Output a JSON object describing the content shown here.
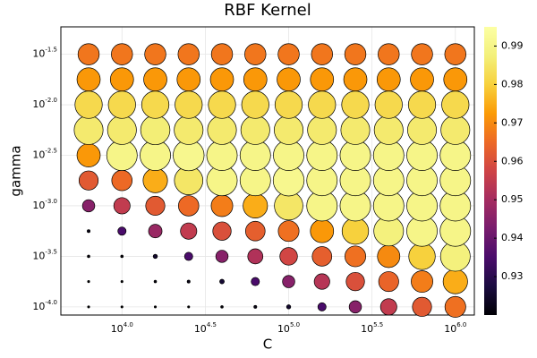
{
  "chart_data": {
    "type": "scatter",
    "title": "RBF Kernel",
    "xlabel": "C",
    "ylabel": "gamma",
    "x": [
      6310,
      10000,
      15849,
      25119,
      39811,
      63096,
      100000,
      158489,
      251189,
      398107,
      630957,
      1000000
    ],
    "y": [
      0.0001,
      0.000178,
      0.000316,
      0.000562,
      0.001,
      0.00178,
      0.00316,
      0.00562,
      0.01,
      0.0178,
      0.0316
    ],
    "values": [
      [
        0.92,
        0.92,
        0.92,
        0.92,
        0.921,
        0.922,
        0.925,
        0.935,
        0.945,
        0.955,
        0.962,
        0.966
      ],
      [
        0.92,
        0.92,
        0.921,
        0.922,
        0.926,
        0.935,
        0.945,
        0.953,
        0.96,
        0.964,
        0.968,
        0.975
      ],
      [
        0.921,
        0.921,
        0.925,
        0.935,
        0.945,
        0.952,
        0.958,
        0.963,
        0.966,
        0.97,
        0.98,
        0.988
      ],
      [
        0.922,
        0.935,
        0.948,
        0.955,
        0.96,
        0.963,
        0.966,
        0.972,
        0.98,
        0.988,
        0.99,
        0.99
      ],
      [
        0.945,
        0.955,
        0.962,
        0.965,
        0.968,
        0.975,
        0.985,
        0.99,
        0.99,
        0.99,
        0.99,
        0.99
      ],
      [
        0.962,
        0.965,
        0.975,
        0.985,
        0.99,
        0.99,
        0.991,
        0.99,
        0.99,
        0.99,
        0.99,
        0.99
      ],
      [
        0.972,
        0.99,
        0.99,
        0.991,
        0.99,
        0.99,
        0.99,
        0.99,
        0.99,
        0.99,
        0.99,
        0.99
      ],
      [
        0.986,
        0.986,
        0.987,
        0.986,
        0.986,
        0.986,
        0.986,
        0.986,
        0.986,
        0.986,
        0.986,
        0.986
      ],
      [
        0.982,
        0.982,
        0.982,
        0.982,
        0.982,
        0.982,
        0.982,
        0.982,
        0.982,
        0.982,
        0.982,
        0.982
      ],
      [
        0.972,
        0.972,
        0.972,
        0.972,
        0.972,
        0.972,
        0.972,
        0.972,
        0.972,
        0.972,
        0.972,
        0.972
      ],
      [
        0.967,
        0.967,
        0.967,
        0.967,
        0.967,
        0.967,
        0.967,
        0.967,
        0.967,
        0.967,
        0.967,
        0.967
      ]
    ],
    "log_x": true,
    "log_y": true,
    "xlim": [
      4300,
      1300000
    ],
    "ylim": [
      8.3e-05,
      0.059
    ],
    "xticks": [
      {
        "value": 10000,
        "label": "10",
        "exponent": "4.0"
      },
      {
        "value": 31623,
        "label": "10",
        "exponent": "4.5"
      },
      {
        "value": 100000,
        "label": "10",
        "exponent": "5.0"
      },
      {
        "value": 316228,
        "label": "10",
        "exponent": "5.5"
      },
      {
        "value": 1000000,
        "label": "10",
        "exponent": "6.0"
      }
    ],
    "yticks": [
      {
        "value": 0.0001,
        "label": "10",
        "exponent": "-4.0"
      },
      {
        "value": 0.000316,
        "label": "10",
        "exponent": "-3.5"
      },
      {
        "value": 0.001,
        "label": "10",
        "exponent": "-3.0"
      },
      {
        "value": 0.00316,
        "label": "10",
        "exponent": "-2.5"
      },
      {
        "value": 0.01,
        "label": "10",
        "exponent": "-2.0"
      },
      {
        "value": 0.0316,
        "label": "10",
        "exponent": "-1.5"
      }
    ],
    "colormap": "inferno",
    "clim": [
      0.92,
      0.995
    ],
    "cticks": [
      0.93,
      0.94,
      0.95,
      0.96,
      0.97,
      0.98,
      0.99
    ],
    "grid": true
  }
}
